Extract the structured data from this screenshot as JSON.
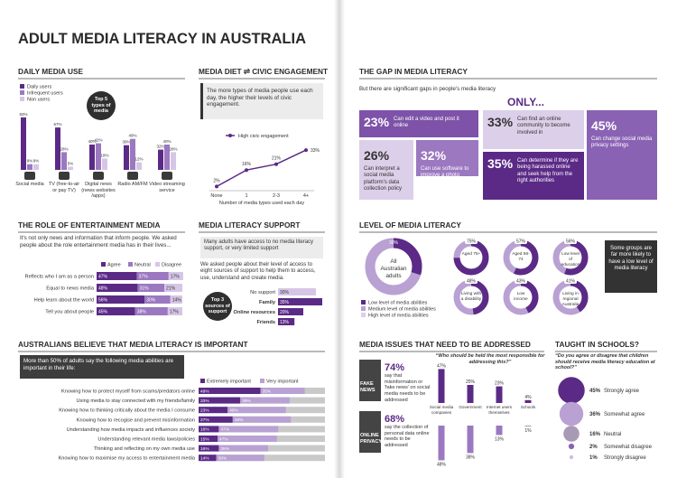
{
  "title": "ADULT MEDIA LITERACY IN AUSTRALIA",
  "daily_media_use": {
    "heading": "DAILY MEDIA USE",
    "badge": "Top 5 types of media",
    "categories": [
      "Social media",
      "TV (free-to-air or pay TV)",
      "Digital news (news websites /apps)",
      "Radio AM/FM",
      "Video streaming service"
    ],
    "series": [
      {
        "name": "Daily users",
        "color": "#5b2a86",
        "values": [
          83,
          67,
          40,
          39,
          32
        ],
        "value_labels": [
          "83%",
          "67%",
          "40%",
          "39%",
          "32%"
        ]
      },
      {
        "name": "Infrequent users",
        "color": "#9b78c0",
        "values": [
          9,
          28,
          42,
          49,
          40
        ],
        "value_labels": [
          "9%",
          "28%",
          "42%",
          "49%",
          "40%"
        ]
      },
      {
        "name": "Non users",
        "color": "#d6c6e6",
        "values": [
          9,
          5,
          18,
          12,
          28
        ],
        "value_labels": [
          "9%",
          "5%",
          "18%",
          "12%",
          "28%"
        ]
      }
    ]
  },
  "media_diet": {
    "heading": "MEDIA DIET ⇌ CIVIC ENGAGEMENT",
    "text": "The more types of media people use each day, the higher their levels of civic engagement.",
    "series_name": "High civic engagement",
    "color": "#5b2a86",
    "categories": [
      "None",
      "1",
      "2-3",
      "4+"
    ],
    "values": [
      2,
      16,
      21,
      33
    ],
    "value_labels": [
      "2%",
      "16%",
      "21%",
      "33%"
    ],
    "x_label": "Number of media types used each day"
  },
  "entertainment": {
    "heading": "THE ROLE OF ENTERTAINMENT MEDIA",
    "text": "It's not only news and information that inform people. We asked people about the role entertainment media has in their lives...",
    "rows": [
      "Reflects who I am as a person",
      "Equal to news media",
      "Help learn about the world",
      "Tell you about people"
    ],
    "series": [
      {
        "name": "Agree",
        "color": "#5b2a86",
        "values": [
          47,
          48,
          56,
          45
        ],
        "value_labels": [
          "47%",
          "48%",
          "56%",
          "45%"
        ]
      },
      {
        "name": "Neutral",
        "color": "#9b78c0",
        "values": [
          37,
          31,
          30,
          38
        ],
        "value_labels": [
          "37%",
          "31%",
          "30%",
          "38%"
        ]
      },
      {
        "name": "Disagree",
        "color": "#d6c6e6",
        "values": [
          17,
          21,
          14,
          17
        ],
        "value_labels": [
          "17%",
          "21%",
          "14%",
          "17%"
        ]
      }
    ]
  },
  "support": {
    "heading": "MEDIA LITERACY SUPPORT",
    "box": "Many adults have access to no media literacy support, or very limited support",
    "text": "We asked people about their level of access to eight sources of support to help them to access, use, understand and create media.",
    "badge": "Top 3 sources of support",
    "rows": [
      "No support",
      "Family",
      "Online resources",
      "Friends"
    ],
    "values": [
      30,
      35,
      20,
      13
    ],
    "value_labels": [
      "30%",
      "35%",
      "20%",
      "13%"
    ],
    "colors": [
      "#d6c6e6",
      "#5b2a86",
      "#5b2a86",
      "#5b2a86"
    ]
  },
  "important": {
    "heading": "AUSTRALIANS BELIEVE THAT MEDIA LITERACY IS IMPORTANT",
    "intro": "More than 50% of adults say the following media abilities are important in their life:",
    "rows": [
      "Knowing how to protect myself from scams/predators online",
      "Using media to stay connected with my friends/family",
      "Knowing how to thinking critically about the media I consume",
      "Knowing how to recogise and prevent misinformation",
      "Understanding how media impacts and influences society",
      "Understanding relevant media laws/policies",
      "Thinking and reflecting on my own media use",
      "Knowing how to maximise my access to entertainment media"
    ],
    "series": [
      {
        "name": "Extremely important",
        "color": "#5b2a86",
        "values": [
          49,
          33,
          23,
          27,
          16,
          15,
          16,
          14
        ],
        "value_labels": [
          "49%",
          "33%",
          "23%",
          "27%",
          "16%",
          "15%",
          "16%",
          "14%"
        ]
      },
      {
        "name": "Very important",
        "color": "#b9a1d3",
        "values": [
          35,
          39,
          46,
          46,
          47,
          47,
          39,
          38
        ],
        "value_labels": [
          "35%",
          "39%",
          "46%",
          "46%",
          "47%",
          "47%",
          "39%",
          "38%"
        ]
      }
    ]
  },
  "gap": {
    "heading": "THE GAP IN MEDIA LITERACY",
    "subtitle": "But there are significant gaps in people's media literacy",
    "only": "ONLY...",
    "tiles": [
      {
        "value": "23%",
        "text": "Can edit a video and post it online",
        "color": "#7d52a8"
      },
      {
        "value": "26%",
        "text": "Can interpret a social media platform's data collection policy",
        "color": "#dccfe9"
      },
      {
        "value": "32%",
        "text": "Can use software to improve a photo",
        "color": "#9b78c0"
      },
      {
        "value": "33%",
        "text": "Can find an online community to become involved in",
        "color": "#dccfe9"
      },
      {
        "value": "35%",
        "text": "Can determine if they are being harassed online and seek help from the right authorities",
        "color": "#5b2a86"
      },
      {
        "value": "45%",
        "text": "Can change social media privacy settings",
        "color": "#8a62b4"
      }
    ]
  },
  "level": {
    "heading": "LEVEL OF MEDIA LITERACY",
    "all": {
      "label": "All Australian adults",
      "value": 30,
      "value_label": "30%"
    },
    "groups": [
      {
        "label": "Aged 75+",
        "value": 75,
        "value_label": "75%"
      },
      {
        "label": "Aged 56-74",
        "value": 57,
        "value_label": "57%"
      },
      {
        "label": "Low level of education",
        "value": 56,
        "value_label": "56%"
      },
      {
        "label": "Living with a disability",
        "value": 48,
        "value_label": "48%"
      },
      {
        "label": "Low income",
        "value": 43,
        "value_label": "43%"
      },
      {
        "label": "Living in regional Australia",
        "value": 41,
        "value_label": "41%"
      }
    ],
    "legend": [
      {
        "name": "Low level of media abilities",
        "color": "#5b2a86"
      },
      {
        "name": "Medium level of media abilities",
        "color": "#b9a1d3"
      },
      {
        "name": "High level of media abilities",
        "color": "#dccfe9"
      }
    ],
    "note": "Some groups are far more likely to have a low level of media literacy"
  },
  "issues": {
    "heading": "MEDIA ISSUES THAT NEED TO BE ADDRESSED",
    "items": [
      {
        "label": "FAKE NEWS",
        "value": "74%",
        "text": "say that misinformation or 'fake news' on social media needs to be addressed"
      },
      {
        "label": "ONLINE PRIVACY",
        "value": "68%",
        "text": "say the collection of personal data online needs to be addressed"
      }
    ],
    "question": "“Who should be held the most responsible for addressing this?”",
    "categories": [
      "Social media companies",
      "Government",
      "Internet users themselves",
      "Schools"
    ],
    "series": [
      {
        "color": "#5b2a86",
        "values": [
          47,
          25,
          23,
          4
        ],
        "value_labels": [
          "47%",
          "25%",
          "23%",
          "4%"
        ]
      },
      {
        "color": "#9b78c0",
        "values": [
          48,
          38,
          13,
          1
        ],
        "value_labels": [
          "48%",
          "38%",
          "13%",
          "1%"
        ]
      }
    ]
  },
  "schools": {
    "heading": "TAUGHT IN SCHOOLS?",
    "question": "“Do you agree or disagree that children should receive media literacy education at school?”",
    "items": [
      {
        "value": 45,
        "value_label": "45%",
        "label": "Strongly agree",
        "color": "#5b2a86"
      },
      {
        "value": 36,
        "value_label": "36%",
        "label": "Somewhat agree",
        "color": "#b9a1d3"
      },
      {
        "value": 16,
        "value_label": "16%",
        "label": "Neutral",
        "color": "#a899b5"
      },
      {
        "value": 2,
        "value_label": "2%",
        "label": "Somewhat disagree",
        "color": "#8a62b4"
      },
      {
        "value": 1,
        "value_label": "1%",
        "label": "Strongly disagree",
        "color": "#cdbde0"
      }
    ]
  }
}
